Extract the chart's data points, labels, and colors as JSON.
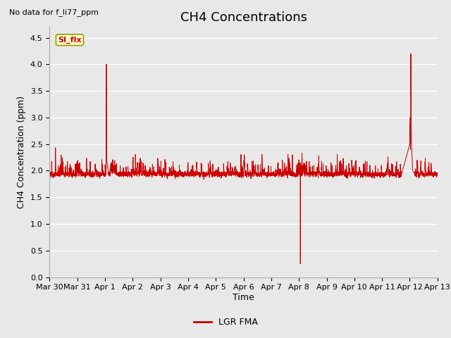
{
  "title": "CH4 Concentrations",
  "xlabel": "Time",
  "ylabel": "CH4 Concentration (ppm)",
  "top_left_text": "No data for f_li77_ppm",
  "legend_label": "LGR FMA",
  "legend_line_color": "#cc0000",
  "annotation_box_text": "SI_flx",
  "annotation_box_facecolor": "#ffffcc",
  "annotation_box_edgecolor": "#999900",
  "annotation_box_textcolor": "#cc0000",
  "ylim": [
    0.0,
    4.7
  ],
  "yticks": [
    0.0,
    0.5,
    1.0,
    1.5,
    2.0,
    2.5,
    3.0,
    3.5,
    4.0,
    4.5
  ],
  "background_color": "#e8e8e8",
  "plot_background_color": "#e8e8e8",
  "grid_color": "#ffffff",
  "line_color": "#cc0000",
  "title_fontsize": 13,
  "axis_label_fontsize": 9,
  "tick_label_fontsize": 8
}
